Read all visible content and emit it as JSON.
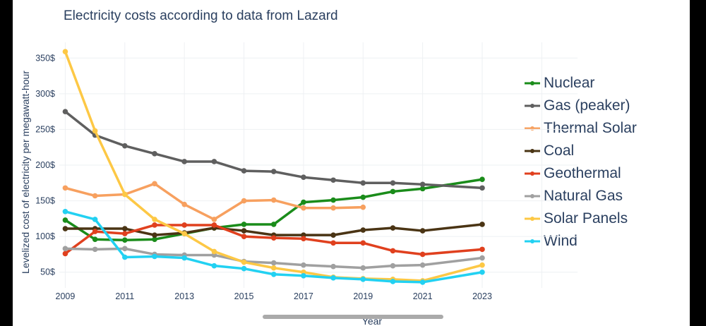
{
  "chart_data": {
    "type": "line",
    "title": "Electricity costs according to data from Lazard",
    "xlabel": "Year",
    "ylabel": "Levelized cost of electricity per megawatt-hour",
    "x_ticks": [
      "2009",
      "2011",
      "2013",
      "2015",
      "2017",
      "2019",
      "2021",
      "2023"
    ],
    "y_ticks": [
      "50$",
      "100$",
      "150$",
      "200$",
      "250$",
      "300$",
      "350$"
    ],
    "xlim": [
      2008.8,
      2026.2
    ],
    "ylim": [
      28,
      372
    ],
    "grid": true,
    "legend_position": "right",
    "series": [
      {
        "name": "Nuclear",
        "color": "#1a8c1a",
        "x": [
          2009,
          2010,
          2011,
          2012,
          2013,
          2014,
          2015,
          2016,
          2017,
          2018,
          2019,
          2020,
          2021,
          2023
        ],
        "values": [
          123,
          96,
          95,
          96,
          104,
          112,
          117,
          117,
          148,
          151,
          155,
          163,
          167,
          180
        ]
      },
      {
        "name": "Gas (peaker)",
        "color": "#5f5f5f",
        "x": [
          2009,
          2010,
          2011,
          2012,
          2013,
          2014,
          2015,
          2016,
          2017,
          2018,
          2019,
          2020,
          2021,
          2023
        ],
        "values": [
          275,
          242,
          227,
          216,
          205,
          205,
          192,
          191,
          183,
          179,
          175,
          175,
          173,
          168
        ]
      },
      {
        "name": "Thermal Solar",
        "color": "#f7a05f",
        "x": [
          2009,
          2010,
          2011,
          2012,
          2013,
          2014,
          2015,
          2016,
          2017,
          2018,
          2019
        ],
        "values": [
          168,
          157,
          159,
          174,
          145,
          124,
          150,
          151,
          140,
          140,
          141
        ]
      },
      {
        "name": "Coal",
        "color": "#4a3414",
        "x": [
          2009,
          2010,
          2011,
          2012,
          2013,
          2014,
          2015,
          2016,
          2017,
          2018,
          2019,
          2020,
          2021,
          2023
        ],
        "values": [
          111,
          111,
          111,
          102,
          105,
          112,
          108,
          102,
          102,
          102,
          109,
          112,
          108,
          117
        ]
      },
      {
        "name": "Geothermal",
        "color": "#e0401e",
        "x": [
          2009,
          2010,
          2011,
          2012,
          2013,
          2014,
          2015,
          2016,
          2017,
          2018,
          2019,
          2020,
          2021,
          2023
        ],
        "values": [
          76,
          107,
          104,
          116,
          116,
          116,
          100,
          98,
          97,
          91,
          91,
          80,
          75,
          82
        ]
      },
      {
        "name": "Natural Gas",
        "color": "#a0a0a0",
        "x": [
          2009,
          2010,
          2011,
          2012,
          2013,
          2014,
          2015,
          2016,
          2017,
          2018,
          2019,
          2020,
          2021,
          2023
        ],
        "values": [
          83,
          82,
          83,
          75,
          74,
          74,
          65,
          63,
          60,
          58,
          56,
          59,
          60,
          70
        ]
      },
      {
        "name": "Solar Panels",
        "color": "#fdc845",
        "x": [
          2009,
          2010,
          2011,
          2012,
          2013,
          2014,
          2015,
          2016,
          2017,
          2018,
          2019,
          2020,
          2021,
          2023
        ],
        "values": [
          359,
          248,
          159,
          124,
          104,
          79,
          64,
          56,
          50,
          43,
          41,
          40,
          38,
          60
        ]
      },
      {
        "name": "Wind",
        "color": "#22d1f2",
        "x": [
          2009,
          2010,
          2011,
          2012,
          2013,
          2014,
          2015,
          2016,
          2017,
          2018,
          2019,
          2020,
          2021,
          2023
        ],
        "values": [
          135,
          124,
          71,
          72,
          70,
          59,
          55,
          47,
          45,
          42,
          40,
          37,
          36,
          50
        ]
      }
    ]
  }
}
